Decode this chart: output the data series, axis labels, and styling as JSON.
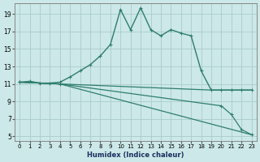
{
  "title": "",
  "xlabel": "Humidex (Indice chaleur)",
  "ylabel": "",
  "bg_color": "#cce8e8",
  "grid_color": "#aacccc",
  "line_color": "#2e7d6e",
  "xlim": [
    -0.5,
    23.5
  ],
  "ylim": [
    4.5,
    20.2
  ],
  "xticks": [
    0,
    1,
    2,
    3,
    4,
    5,
    6,
    7,
    8,
    9,
    10,
    11,
    12,
    13,
    14,
    15,
    16,
    17,
    18,
    19,
    20,
    21,
    22,
    23
  ],
  "yticks": [
    5,
    7,
    9,
    11,
    13,
    15,
    17,
    19
  ],
  "lines": [
    {
      "x": [
        0,
        1,
        2,
        3,
        4,
        5,
        6,
        7,
        8,
        9,
        10,
        11,
        12,
        13,
        14,
        15,
        16,
        17,
        18,
        19,
        20,
        21,
        22,
        23
      ],
      "y": [
        11.2,
        11.3,
        11.1,
        11.1,
        11.2,
        11.8,
        12.5,
        13.2,
        14.2,
        15.5,
        19.5,
        17.2,
        19.7,
        17.2,
        16.5,
        17.2,
        16.8,
        16.5,
        12.5,
        10.3,
        10.3,
        10.3,
        10.3,
        10.3
      ],
      "marker": "P",
      "markersize": 2.5,
      "linewidth": 1.0
    },
    {
      "x": [
        0,
        4,
        19,
        23
      ],
      "y": [
        11.2,
        11.0,
        10.3,
        10.3
      ],
      "marker": null,
      "markersize": 0,
      "linewidth": 0.9
    },
    {
      "x": [
        0,
        4,
        20,
        21,
        22,
        23
      ],
      "y": [
        11.2,
        11.0,
        8.5,
        7.5,
        5.8,
        5.2
      ],
      "marker": "P",
      "markersize": 2.5,
      "linewidth": 0.9
    },
    {
      "x": [
        0,
        4,
        23
      ],
      "y": [
        11.2,
        11.0,
        5.2
      ],
      "marker": null,
      "markersize": 0,
      "linewidth": 0.9
    }
  ]
}
